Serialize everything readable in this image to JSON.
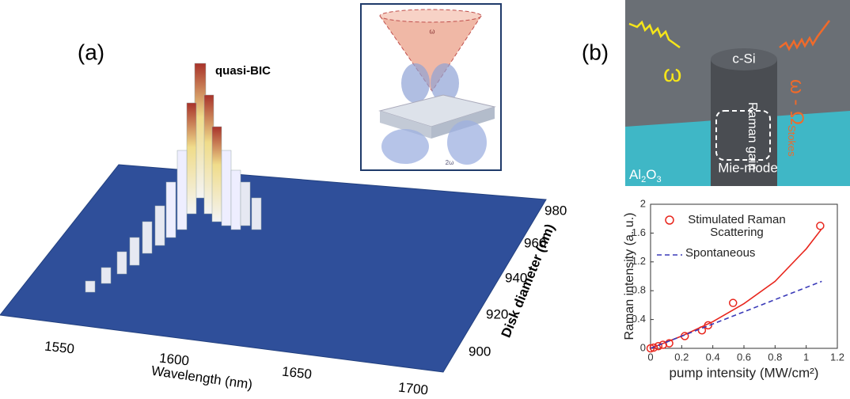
{
  "panel_a": {
    "label": "(a)",
    "annotation": "quasi-BIC",
    "x_axis_label": "Wavelength (nm)",
    "x_ticks": [
      1550,
      1600,
      1650,
      1700
    ],
    "y_axis_label": "Disk diameter (nm)",
    "y_ticks": [
      900,
      920,
      940,
      960,
      980
    ],
    "inset": {
      "top_label": "ω",
      "bottom_label": "2ω"
    }
  },
  "panel_b": {
    "label": "(b)",
    "pump": "ω",
    "material": "c-Si",
    "output": "ω - Ω",
    "output_sub": "Stokes",
    "gain": "Raman gain",
    "mode": "Mie-mode",
    "substrate": "Al",
    "substrate_sub1": "2",
    "substrate_mid": "O",
    "substrate_sub2": "3"
  },
  "chart_data": {
    "type": "scatter",
    "xlabel": "pump intensity (MW/cm²)",
    "ylabel": "Raman intensity (a. u.)",
    "xlim": [
      0,
      1.2
    ],
    "ylim": [
      0,
      2
    ],
    "xticks": [
      0,
      0.2,
      0.4,
      0.6,
      0.8,
      1,
      1.2
    ],
    "yticks": [
      0,
      0.4,
      0.8,
      1.2,
      1.6,
      2
    ],
    "series": [
      {
        "name": "Stimulated Raman Scattering",
        "color": "#e8261d",
        "marker": "circle",
        "x": [
          0,
          0.02,
          0.05,
          0.08,
          0.12,
          0.22,
          0.33,
          0.37,
          0.53,
          1.09
        ],
        "values": [
          0,
          0.01,
          0.03,
          0.05,
          0.07,
          0.17,
          0.25,
          0.32,
          0.63,
          1.7
        ],
        "fit_x": [
          0,
          0.2,
          0.4,
          0.6,
          0.8,
          1,
          1.1
        ],
        "fit_values": [
          0,
          0.17,
          0.37,
          0.62,
          0.93,
          1.38,
          1.66
        ]
      },
      {
        "name": "Spontaneous",
        "color": "#3a3ab8",
        "line_style": "dashed",
        "x": [
          0,
          1.1
        ],
        "values": [
          0,
          0.93
        ]
      }
    ]
  }
}
